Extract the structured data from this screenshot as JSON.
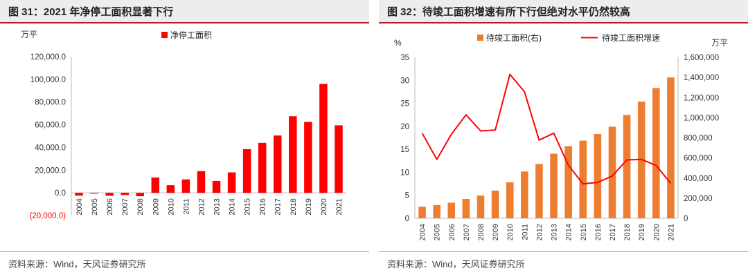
{
  "left": {
    "title": "图 31：2021 年净停工面积显著下行",
    "source": "资料来源：Wind，天风证券研究所",
    "unit_label": "万平",
    "chart_data": {
      "type": "bar",
      "title": "图 31：2021 年净停工面积显著下行",
      "ylabel": "万平",
      "legend": "top-center",
      "grid": false,
      "categories": [
        "2004",
        "2005",
        "2006",
        "2007",
        "2008",
        "2009",
        "2010",
        "2011",
        "2012",
        "2013",
        "2014",
        "2015",
        "2016",
        "2017",
        "2018",
        "2019",
        "2020",
        "2021"
      ],
      "series": [
        {
          "name": "净停工面积",
          "color": "#ff0000",
          "values": [
            -2500,
            -700,
            -2600,
            -1900,
            -3000,
            13500,
            6700,
            11800,
            19100,
            10500,
            18000,
            38500,
            44000,
            50500,
            67500,
            62500,
            96000,
            59500
          ]
        }
      ],
      "ylim": [
        -20000,
        120000
      ],
      "yticks": [
        -20000,
        0,
        20000,
        40000,
        60000,
        80000,
        100000,
        120000
      ],
      "ytick_labels": [
        "(20,000.0)",
        "0.0",
        "20,000.0",
        "40,000.0",
        "60,000.0",
        "80,000.0",
        "100,000.0",
        "120,000.0"
      ]
    }
  },
  "right": {
    "title": "图 32：待竣工面积增速有所下行但绝对水平仍然较高",
    "source": "资料来源：Wind，天风证券研究所",
    "left_unit_label": "%",
    "right_unit_label": "万平",
    "chart_data": {
      "type": "bar",
      "title": "图 32：待竣工面积增速有所下行但绝对水平仍然较高",
      "legend": "top-center",
      "grid": false,
      "categories": [
        "2004",
        "2005",
        "2006",
        "2007",
        "2008",
        "2009",
        "2010",
        "2011",
        "2012",
        "2013",
        "2014",
        "2015",
        "2016",
        "2017",
        "2018",
        "2019",
        "2020",
        "2021"
      ],
      "series": [
        {
          "name": "待竣工面积(右)",
          "type": "bar",
          "axis": "right",
          "color": "#ed7d31",
          "values": [
            115000,
            132000,
            155000,
            192000,
            226000,
            275000,
            358000,
            465000,
            540000,
            642000,
            717000,
            772000,
            838000,
            910000,
            1027000,
            1160000,
            1295000,
            1400000
          ]
        },
        {
          "name": "待竣工面积增速",
          "type": "line",
          "axis": "left",
          "color": "#ff0000",
          "values": [
            18.5,
            12.8,
            18.3,
            22.5,
            19.0,
            19.2,
            31.3,
            27.5,
            17.0,
            18.5,
            11.5,
            7.5,
            7.8,
            9.2,
            12.7,
            12.8,
            11.5,
            7.6
          ]
        }
      ],
      "ylim_left": [
        0,
        35
      ],
      "yticks_left": [
        "0",
        "5",
        "10",
        "15",
        "20",
        "25",
        "30",
        "35"
      ],
      "ylim_right": [
        0,
        1600000
      ],
      "yticks_right": [
        "0",
        "200,000",
        "400,000",
        "600,000",
        "800,000",
        "1,000,000",
        "1,200,000",
        "1,400,000",
        "1,600,000"
      ]
    }
  }
}
